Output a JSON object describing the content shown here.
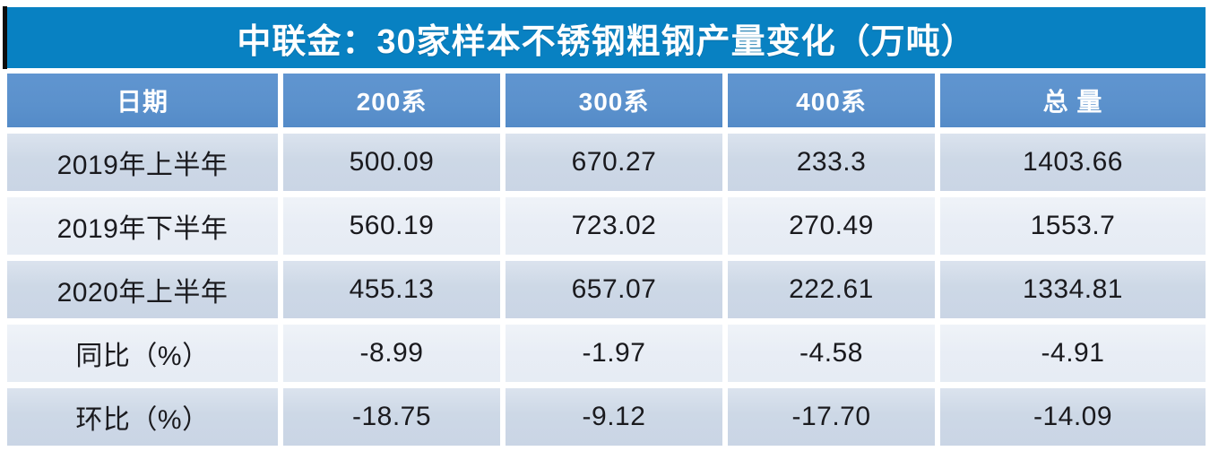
{
  "table": {
    "title": "中联金：30家样本不锈钢粗钢产量变化（万吨）",
    "columns": [
      "日期",
      "200系",
      "300系",
      "400系",
      "总 量"
    ],
    "rows": [
      {
        "label": "2019年上半年",
        "values": [
          "500.09",
          "670.27",
          "233.3",
          "1403.66"
        ]
      },
      {
        "label": "2019年下半年",
        "values": [
          "560.19",
          "723.02",
          "270.49",
          "1553.7"
        ]
      },
      {
        "label": "2020年上半年",
        "values": [
          "455.13",
          "657.07",
          "222.61",
          "1334.81"
        ]
      },
      {
        "label": "同比（%）",
        "values": [
          "-8.99",
          "-1.97",
          "-4.58",
          "-4.91"
        ]
      },
      {
        "label": "环比（%）",
        "values": [
          "-18.75",
          "-9.12",
          "-17.70",
          "-14.09"
        ]
      }
    ]
  },
  "colors": {
    "title_bar_bg": "#0881c2",
    "header_bg": "#5b91cc",
    "row_band_dark": "#ccd7e6",
    "row_band_light": "#e9eef6",
    "title_text": "#ffffff",
    "body_text": "#1a1a1e",
    "left_notch": "#0d0d0d"
  },
  "chart_data": {
    "type": "table",
    "title": "中联金：30家样本不锈钢粗钢产量变化（万吨）",
    "columns": [
      "日期",
      "200系",
      "300系",
      "400系",
      "总 量"
    ],
    "rows": [
      [
        "2019年上半年",
        500.09,
        670.27,
        233.3,
        1403.66
      ],
      [
        "2019年下半年",
        560.19,
        723.02,
        270.49,
        1553.7
      ],
      [
        "2020年上半年",
        455.13,
        657.07,
        222.61,
        1334.81
      ],
      [
        "同比（%）",
        -8.99,
        -1.97,
        -4.58,
        -4.91
      ],
      [
        "环比（%）",
        -18.75,
        -9.12,
        -17.7,
        -14.09
      ]
    ],
    "units": "万吨",
    "notes_layout": "title bar on top, header row, 5 banded data rows, all cells center-aligned"
  }
}
